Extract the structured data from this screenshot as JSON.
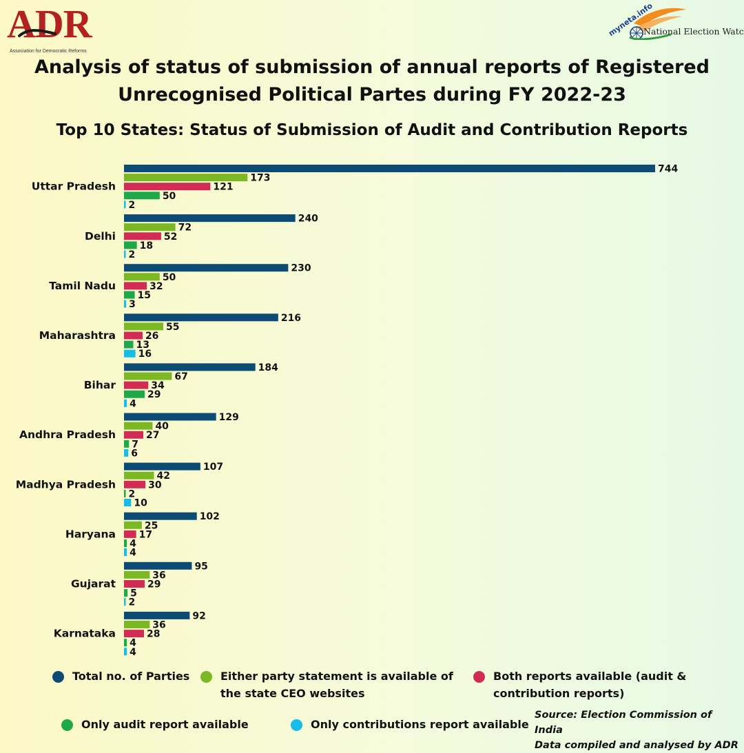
{
  "logos": {
    "adr": {
      "text": "ADR",
      "tagline": "Association for Democratic Reforms"
    },
    "new": {
      "myneta": "myneta.info",
      "text": "National Election Watch"
    }
  },
  "header": {
    "title_line1": "Analysis of status of submission of annual reports of Registered",
    "title_line2": "Unrecognised Political Partes during FY 2022-23"
  },
  "chart_data": {
    "type": "bar",
    "orientation": "horizontal",
    "title": "Top 10 States: Status of Submission of Audit and Contribution Reports",
    "xlabel": "",
    "ylabel": "",
    "xlim": [
      0,
      744
    ],
    "grid": false,
    "legend_position": "bottom",
    "categories": [
      "Uttar Pradesh",
      "Delhi",
      "Tamil Nadu",
      "Maharashtra",
      "Bihar",
      "Andhra Pradesh",
      "Madhya Pradesh",
      "Haryana",
      "Gujarat",
      "Karnataka"
    ],
    "series": [
      {
        "name": "Total no. of Parties",
        "color": "#0c4c74",
        "values": [
          744,
          240,
          230,
          216,
          184,
          129,
          107,
          102,
          95,
          92
        ]
      },
      {
        "name": "Either party statement is available of the state CEO websites",
        "color": "#7cb824",
        "values": [
          173,
          72,
          50,
          55,
          67,
          40,
          42,
          25,
          36,
          36
        ]
      },
      {
        "name": "Both reports available (audit & contribution reports)",
        "color": "#d12c54",
        "values": [
          121,
          52,
          32,
          26,
          34,
          27,
          30,
          17,
          29,
          28
        ]
      },
      {
        "name": "Only audit report available",
        "color": "#1fa84a",
        "values": [
          50,
          18,
          15,
          13,
          29,
          7,
          2,
          4,
          5,
          4
        ]
      },
      {
        "name": "Only contributions report available",
        "color": "#17bde6",
        "values": [
          2,
          2,
          3,
          16,
          4,
          6,
          10,
          4,
          2,
          4
        ]
      }
    ]
  },
  "legend": {
    "total": {
      "line1": "Total no. of Parties",
      "color": "#0c4c74"
    },
    "either": {
      "line1": "Either party statement is available of",
      "line2": "the state CEO websites",
      "color": "#7cb824"
    },
    "both": {
      "line1": "Both reports available (audit &",
      "line2": "contribution reports)",
      "color": "#d12c54"
    },
    "audit": {
      "line1": "Only audit report available",
      "color": "#1fa84a"
    },
    "contrib": {
      "line1": "Only contributions report available",
      "color": "#17bde6"
    }
  },
  "source": {
    "line1": "Source: Election Commission of India",
    "line2": "Data compiled and analysed by ADR"
  }
}
